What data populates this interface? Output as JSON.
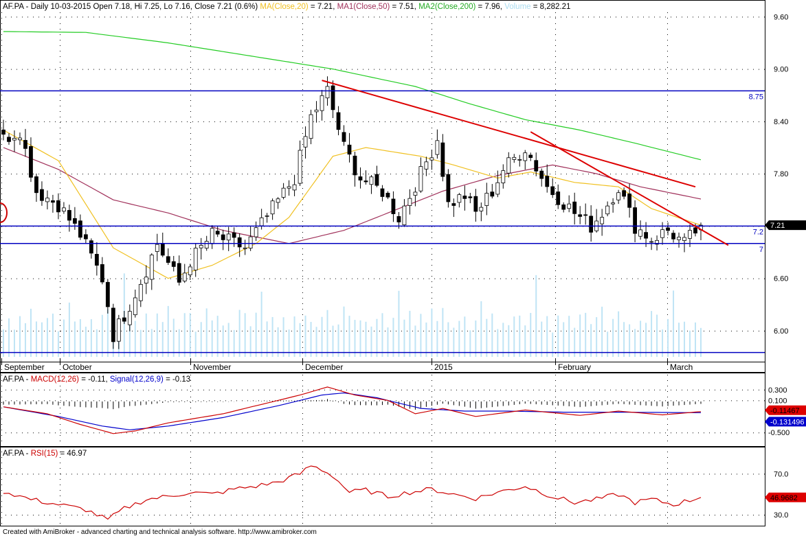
{
  "header": {
    "ticker": "AF.PA",
    "info": "AF.PA - Daily 10-03-2015 Open 7.18, Hi 7.25, Lo 7.16, Close 7.21 (0.6%)",
    "ma20_label": "MA(Close,20)",
    "ma20_value": " = 7.21, ",
    "ma50_label": "MA1(Close,50)",
    "ma50_value": " = 7.51, ",
    "ma200_label": "MA2(Close,200)",
    "ma200_value": " = 7.96, ",
    "vol_label": "Volume",
    "vol_value": " = 8,282.21"
  },
  "macd_header": {
    "prefix": "AF.PA - ",
    "macd_label": "MACD(12,26)",
    "macd_value": " = -0.11, ",
    "signal_label": "Signal(12,26,9)",
    "signal_value": " = -0.13"
  },
  "rsi_header": {
    "prefix": "AF.PA - ",
    "rsi_label": "RSI(15)",
    "rsi_value": " = 46.97"
  },
  "footer": "Created with AmiBroker - advanced charting and technical analysis software. http://www.amibroker.com",
  "colors": {
    "up_candle": "#ffffff",
    "down_candle": "#000000",
    "ma20": "#f0c020",
    "ma50": "#a0305a",
    "ma200": "#22cc22",
    "volume": "#bfe4f5",
    "hline": "#0000c0",
    "trendline": "#dd0000",
    "macd": "#cc0000",
    "signal": "#0000cc",
    "rsi": "#cc0000"
  },
  "chart_data": [
    {
      "type": "candlestick",
      "title": "AF.PA - Daily",
      "x_tick_labels": [
        "September",
        "October",
        "November",
        "December",
        "2015",
        "February",
        "March"
      ],
      "y_tick_labels": [
        "9.60",
        "9.00",
        "8.40",
        "7.80",
        "7.20",
        "6.60",
        "6.00"
      ],
      "ylim": [
        5.7,
        9.65
      ],
      "last_close_label": "7.21",
      "num_bars": 128,
      "ohlc_pivots": [
        {
          "i": 0,
          "c": 8.2
        },
        {
          "i": 3,
          "c": 8.3
        },
        {
          "i": 6,
          "c": 7.6
        },
        {
          "i": 10,
          "c": 7.45
        },
        {
          "i": 14,
          "c": 7.1
        },
        {
          "i": 18,
          "c": 6.6
        },
        {
          "i": 19,
          "c": 6.3
        },
        {
          "i": 20,
          "c": 5.95
        },
        {
          "i": 23,
          "c": 6.3
        },
        {
          "i": 26,
          "c": 6.7
        },
        {
          "i": 28,
          "c": 7.0
        },
        {
          "i": 32,
          "c": 6.55
        },
        {
          "i": 34,
          "c": 6.8
        },
        {
          "i": 38,
          "c": 7.1
        },
        {
          "i": 44,
          "c": 6.95
        },
        {
          "i": 49,
          "c": 7.4
        },
        {
          "i": 53,
          "c": 7.75
        },
        {
          "i": 56,
          "c": 8.45
        },
        {
          "i": 59,
          "c": 8.75
        },
        {
          "i": 62,
          "c": 8.1
        },
        {
          "i": 65,
          "c": 7.75
        },
        {
          "i": 69,
          "c": 7.6
        },
        {
          "i": 72,
          "c": 7.3
        },
        {
          "i": 76,
          "c": 7.8
        },
        {
          "i": 79,
          "c": 8.2
        },
        {
          "i": 81,
          "c": 7.45
        },
        {
          "i": 84,
          "c": 7.55
        },
        {
          "i": 86,
          "c": 7.35
        },
        {
          "i": 89,
          "c": 7.6
        },
        {
          "i": 91,
          "c": 7.85
        },
        {
          "i": 95,
          "c": 8.1
        },
        {
          "i": 99,
          "c": 7.65
        },
        {
          "i": 104,
          "c": 7.35
        },
        {
          "i": 107,
          "c": 7.2
        },
        {
          "i": 109,
          "c": 7.35
        },
        {
          "i": 112,
          "c": 7.65
        },
        {
          "i": 115,
          "c": 7.2
        },
        {
          "i": 118,
          "c": 7.05
        },
        {
          "i": 121,
          "c": 7.15
        },
        {
          "i": 124,
          "c": 7.0
        },
        {
          "i": 127,
          "c": 7.21
        }
      ],
      "ma20_pivots": [
        {
          "i": 0,
          "v": 8.3
        },
        {
          "i": 10,
          "v": 7.95
        },
        {
          "i": 20,
          "v": 6.95
        },
        {
          "i": 30,
          "v": 6.6
        },
        {
          "i": 38,
          "v": 6.75
        },
        {
          "i": 46,
          "v": 7.0
        },
        {
          "i": 52,
          "v": 7.3
        },
        {
          "i": 56,
          "v": 7.65
        },
        {
          "i": 60,
          "v": 8.0
        },
        {
          "i": 66,
          "v": 8.1
        },
        {
          "i": 76,
          "v": 8.0
        },
        {
          "i": 82,
          "v": 7.9
        },
        {
          "i": 90,
          "v": 7.75
        },
        {
          "i": 96,
          "v": 7.82
        },
        {
          "i": 104,
          "v": 7.7
        },
        {
          "i": 112,
          "v": 7.65
        },
        {
          "i": 118,
          "v": 7.4
        },
        {
          "i": 127,
          "v": 7.21
        }
      ],
      "ma50_pivots": [
        {
          "i": 0,
          "v": 8.1
        },
        {
          "i": 10,
          "v": 7.85
        },
        {
          "i": 20,
          "v": 7.5
        },
        {
          "i": 30,
          "v": 7.35
        },
        {
          "i": 40,
          "v": 7.15
        },
        {
          "i": 52,
          "v": 7.0
        },
        {
          "i": 62,
          "v": 7.15
        },
        {
          "i": 70,
          "v": 7.35
        },
        {
          "i": 80,
          "v": 7.6
        },
        {
          "i": 90,
          "v": 7.78
        },
        {
          "i": 100,
          "v": 7.9
        },
        {
          "i": 108,
          "v": 7.8
        },
        {
          "i": 116,
          "v": 7.65
        },
        {
          "i": 127,
          "v": 7.51
        }
      ],
      "ma200_pivots": [
        {
          "i": 0,
          "v": 9.43
        },
        {
          "i": 15,
          "v": 9.42
        },
        {
          "i": 30,
          "v": 9.3
        },
        {
          "i": 45,
          "v": 9.15
        },
        {
          "i": 60,
          "v": 9.0
        },
        {
          "i": 75,
          "v": 8.8
        },
        {
          "i": 85,
          "v": 8.6
        },
        {
          "i": 95,
          "v": 8.42
        },
        {
          "i": 105,
          "v": 8.3
        },
        {
          "i": 115,
          "v": 8.15
        },
        {
          "i": 127,
          "v": 7.96
        }
      ],
      "horizontal_lines": [
        {
          "value": 8.75,
          "label": "8.75"
        },
        {
          "value": 7.2,
          "label": "7.2"
        },
        {
          "value": 7.0,
          "label": "7"
        },
        {
          "value": 5.75,
          "label": ""
        }
      ],
      "trendlines": [
        {
          "i1": 58,
          "v1": 8.87,
          "i2": 126,
          "v2": 7.65
        },
        {
          "i1": 96,
          "v1": 8.28,
          "i2": 132,
          "v2": 6.98
        }
      ],
      "volume_pattern": [
        0.3,
        0.45,
        0.35,
        0.55,
        0.4,
        0.6,
        0.5,
        0.35,
        0.45,
        0.55,
        0.3,
        0.4,
        0.65,
        0.5,
        0.45,
        0.38,
        0.42,
        0.35,
        0.5,
        0.6,
        0.3,
        0.55,
        0.95,
        0.4,
        0.5
      ]
    },
    {
      "type": "line",
      "title": "MACD(12,26)",
      "y_tick_labels": [
        "0.300",
        "0.100",
        "-0.500"
      ],
      "ylim": [
        -0.6,
        0.4
      ],
      "macd_last_label": "-0.11467",
      "signal_last_label": "-0.131496",
      "macd_pivots": [
        {
          "i": 0,
          "v": -0.02
        },
        {
          "i": 8,
          "v": -0.15
        },
        {
          "i": 14,
          "v": -0.35
        },
        {
          "i": 20,
          "v": -0.52
        },
        {
          "i": 24,
          "v": -0.47
        },
        {
          "i": 30,
          "v": -0.32
        },
        {
          "i": 40,
          "v": -0.15
        },
        {
          "i": 48,
          "v": 0.05
        },
        {
          "i": 54,
          "v": 0.2
        },
        {
          "i": 59,
          "v": 0.35
        },
        {
          "i": 64,
          "v": 0.2
        },
        {
          "i": 70,
          "v": 0.1
        },
        {
          "i": 75,
          "v": -0.15
        },
        {
          "i": 80,
          "v": -0.05
        },
        {
          "i": 86,
          "v": -0.2
        },
        {
          "i": 95,
          "v": -0.08
        },
        {
          "i": 105,
          "v": -0.18
        },
        {
          "i": 112,
          "v": -0.1
        },
        {
          "i": 120,
          "v": -0.17
        },
        {
          "i": 127,
          "v": -0.11
        }
      ],
      "signal_pivots": [
        {
          "i": 0,
          "v": -0.02
        },
        {
          "i": 10,
          "v": -0.2
        },
        {
          "i": 18,
          "v": -0.38
        },
        {
          "i": 23,
          "v": -0.45
        },
        {
          "i": 30,
          "v": -0.38
        },
        {
          "i": 40,
          "v": -0.22
        },
        {
          "i": 50,
          "v": 0.0
        },
        {
          "i": 58,
          "v": 0.2
        },
        {
          "i": 62,
          "v": 0.24
        },
        {
          "i": 68,
          "v": 0.15
        },
        {
          "i": 76,
          "v": -0.05
        },
        {
          "i": 84,
          "v": -0.1
        },
        {
          "i": 92,
          "v": -0.1
        },
        {
          "i": 102,
          "v": -0.12
        },
        {
          "i": 112,
          "v": -0.12
        },
        {
          "i": 127,
          "v": -0.13
        }
      ]
    },
    {
      "type": "line",
      "title": "RSI(15)",
      "y_tick_labels": [
        "70.0",
        "30.0"
      ],
      "ylim": [
        20,
        85
      ],
      "rsi_last_label": "46.9682",
      "rsi_pivots": [
        {
          "i": 0,
          "v": 53
        },
        {
          "i": 5,
          "v": 45
        },
        {
          "i": 10,
          "v": 40
        },
        {
          "i": 15,
          "v": 35
        },
        {
          "i": 19,
          "v": 25
        },
        {
          "i": 22,
          "v": 36
        },
        {
          "i": 26,
          "v": 45
        },
        {
          "i": 30,
          "v": 48
        },
        {
          "i": 34,
          "v": 52
        },
        {
          "i": 38,
          "v": 50
        },
        {
          "i": 42,
          "v": 55
        },
        {
          "i": 46,
          "v": 58
        },
        {
          "i": 50,
          "v": 62
        },
        {
          "i": 54,
          "v": 70
        },
        {
          "i": 56,
          "v": 78
        },
        {
          "i": 58,
          "v": 74
        },
        {
          "i": 60,
          "v": 68
        },
        {
          "i": 63,
          "v": 52
        },
        {
          "i": 66,
          "v": 54
        },
        {
          "i": 70,
          "v": 48
        },
        {
          "i": 74,
          "v": 52
        },
        {
          "i": 78,
          "v": 55
        },
        {
          "i": 82,
          "v": 50
        },
        {
          "i": 86,
          "v": 46
        },
        {
          "i": 90,
          "v": 52
        },
        {
          "i": 95,
          "v": 58
        },
        {
          "i": 100,
          "v": 48
        },
        {
          "i": 104,
          "v": 42
        },
        {
          "i": 108,
          "v": 45
        },
        {
          "i": 112,
          "v": 50
        },
        {
          "i": 115,
          "v": 42
        },
        {
          "i": 118,
          "v": 45
        },
        {
          "i": 122,
          "v": 40
        },
        {
          "i": 127,
          "v": 46.97
        }
      ]
    }
  ]
}
